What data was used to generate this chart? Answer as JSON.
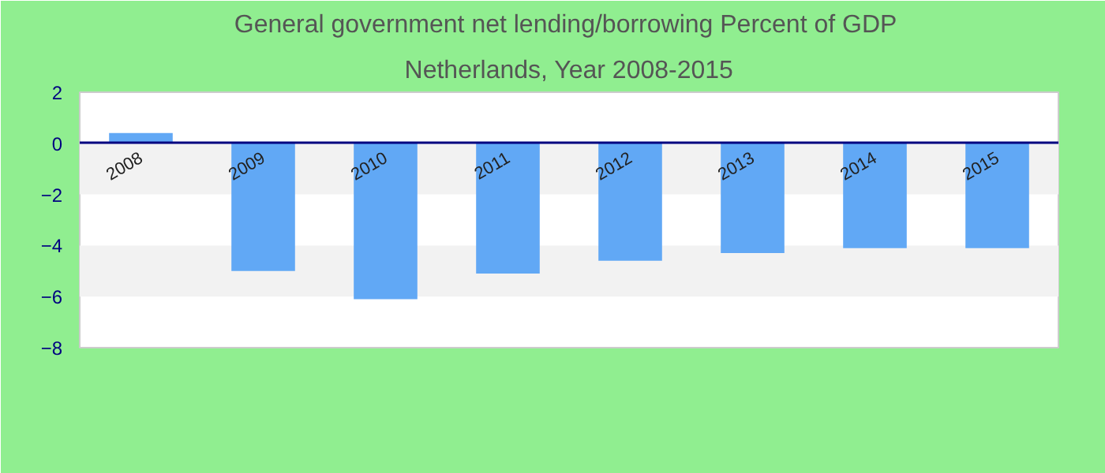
{
  "chart_data": {
    "type": "bar",
    "title": "General government net lending/borrowing  Percent of GDP",
    "subtitle": "Netherlands, Year 2008-2015",
    "categories": [
      "2008",
      "2009",
      "2010",
      "2011",
      "2012",
      "2013",
      "2014",
      "2015"
    ],
    "values": [
      0.4,
      -5.0,
      -6.1,
      -5.1,
      -4.6,
      -4.3,
      -4.1,
      -4.1
    ],
    "color": "#61a8f5",
    "ylim": [
      -8,
      2
    ],
    "yticks": [
      -8,
      -6,
      -4,
      -2,
      0,
      2
    ],
    "bands": [
      {
        "axis": "y",
        "from": -2,
        "to": 0,
        "color": "#f2f2f2"
      },
      {
        "axis": "y",
        "from": -6,
        "to": -4,
        "color": "#f2f2f2"
      }
    ]
  }
}
